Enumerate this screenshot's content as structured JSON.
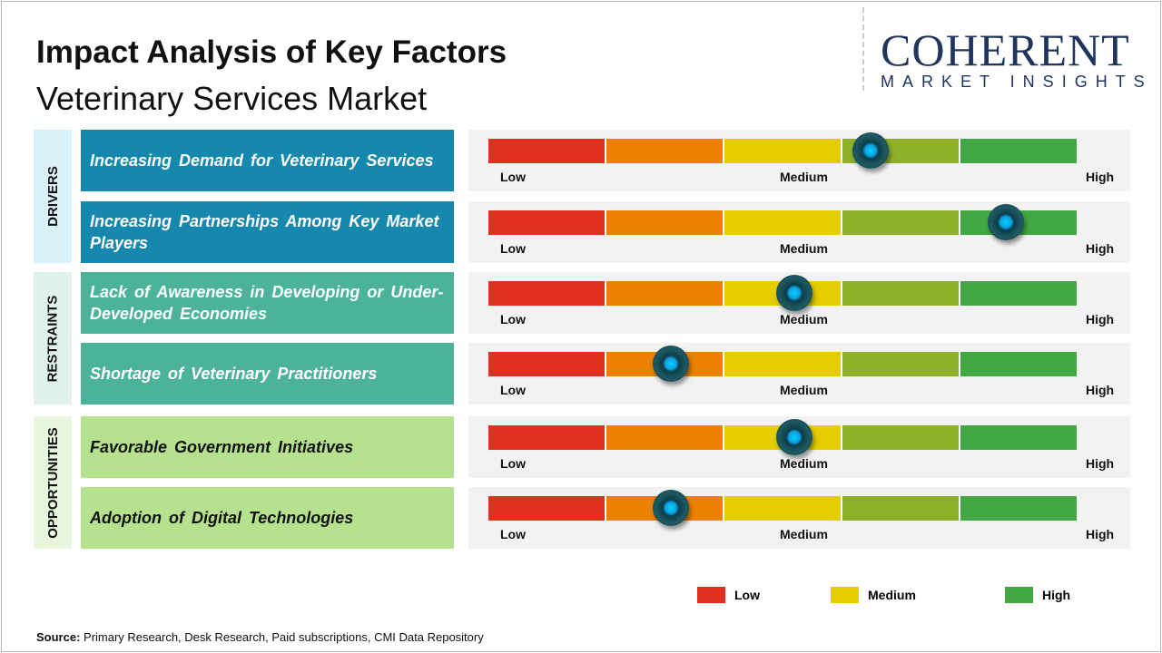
{
  "header": {
    "title": "Impact Analysis of Key Factors",
    "subtitle": "Veterinary Services Market"
  },
  "logo": {
    "line1": "COHERENT",
    "line2": "MARKET INSIGHTS"
  },
  "chart_data": {
    "type": "gauge",
    "scale_labels": [
      "Low",
      "Medium",
      "High"
    ],
    "segment_colors": [
      "#e03020",
      "#ec8100",
      "#e4cc00",
      "#8fb02a",
      "#43a843"
    ],
    "categories": [
      {
        "name": "DRIVERS",
        "bg": "#d9f1f8",
        "factor_bg": "#1687ad",
        "text_color": "#ffffff"
      },
      {
        "name": "RESTRAINTS",
        "bg": "#dff2ee",
        "factor_bg": "#4cb39a",
        "text_color": "#ffffff"
      },
      {
        "name": "OPPORTUNITIES",
        "bg": "#e8f6de",
        "factor_bg": "#b6e28f",
        "text_color": "#111111"
      }
    ],
    "factors": [
      {
        "category": 0,
        "label": "Increasing Demand for Veterinary Services",
        "impact": 0.65
      },
      {
        "category": 0,
        "label": "Increasing Partnerships Among Key Market Players",
        "impact": 0.88
      },
      {
        "category": 1,
        "label": "Lack of Awareness in Developing or Under-Developed Economies",
        "impact": 0.52
      },
      {
        "category": 1,
        "label": "Shortage of Veterinary Practitioners",
        "impact": 0.31
      },
      {
        "category": 2,
        "label": "Favorable Government Initiatives",
        "impact": 0.52
      },
      {
        "category": 2,
        "label": "Adoption of Digital Technologies",
        "impact": 0.31
      }
    ],
    "legend": [
      {
        "label": "Low",
        "color": "#e03020"
      },
      {
        "label": "Medium",
        "color": "#e4cc00"
      },
      {
        "label": "High",
        "color": "#43a843"
      }
    ]
  },
  "source": {
    "label": "Source:",
    "text": " Primary Research, Desk Research, Paid subscriptions, CMI Data Repository"
  }
}
